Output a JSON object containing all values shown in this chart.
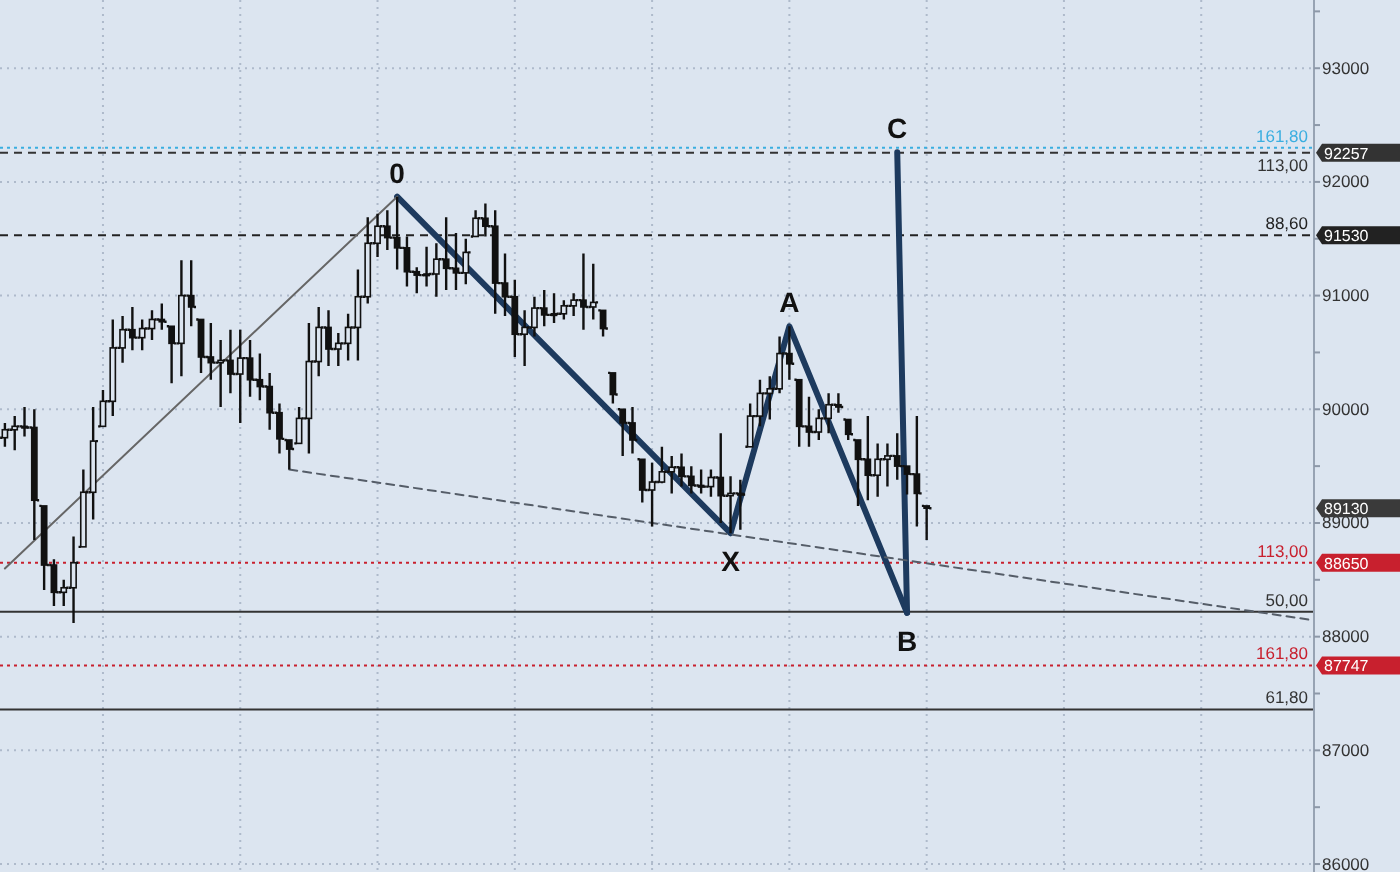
{
  "chart_data": {
    "type": "candlestick",
    "color": "#111111",
    "categories": [
      null,
      null,
      null,
      null,
      null,
      null,
      null,
      null,
      null,
      null,
      null,
      null,
      null,
      null,
      null,
      null,
      null,
      null,
      null,
      null,
      null,
      null,
      null,
      null,
      null,
      null,
      null,
      null,
      null,
      null,
      null,
      null,
      null,
      null,
      null,
      null,
      null,
      null,
      null,
      null,
      null,
      null,
      null,
      null,
      null,
      null,
      null,
      null,
      null,
      null,
      null,
      null,
      null,
      null,
      null,
      null,
      null,
      null,
      null,
      null,
      null,
      null,
      null,
      null,
      null,
      null,
      null,
      null,
      null,
      null,
      null,
      null,
      null,
      null,
      null,
      null,
      null,
      null,
      null,
      null,
      null,
      null,
      null,
      null,
      null,
      null,
      null,
      null,
      null,
      null,
      null,
      null,
      null,
      null,
      null,
      null,
      null,
      null,
      null,
      null,
      null,
      null,
      null,
      null,
      null,
      null,
      null,
      null,
      null,
      null,
      null,
      null,
      null,
      null,
      null,
      null,
      null,
      null,
      null,
      null,
      null,
      null,
      null,
      null,
      null,
      null,
      null,
      null,
      null,
      null,
      null,
      null,
      null,
      null
    ],
    "ohlc": [
      [
        89750,
        89880,
        89670,
        89820
      ],
      [
        89820,
        89940,
        89640,
        89850
      ],
      [
        89850,
        90020,
        89760,
        89840
      ],
      [
        89840,
        90000,
        88850,
        89200
      ],
      [
        89150,
        89150,
        88410,
        88630
      ],
      [
        88630,
        88680,
        88270,
        88390
      ],
      [
        88390,
        88500,
        88270,
        88430
      ],
      [
        88430,
        88880,
        88120,
        88650
      ],
      [
        88790,
        89470,
        88790,
        89270
      ],
      [
        89270,
        90020,
        89030,
        89720
      ],
      [
        89850,
        90170,
        89850,
        90070
      ],
      [
        90070,
        90790,
        89940,
        90540
      ],
      [
        90540,
        90820,
        90410,
        90700
      ],
      [
        90700,
        90900,
        90520,
        90630
      ],
      [
        90630,
        90790,
        90520,
        90710
      ],
      [
        90710,
        90870,
        90610,
        90790
      ],
      [
        90790,
        90930,
        90700,
        90770
      ],
      [
        90730,
        90730,
        90230,
        90580
      ],
      [
        90580,
        91310,
        90290,
        91000
      ],
      [
        91000,
        91310,
        90730,
        90900
      ],
      [
        90790,
        90790,
        90320,
        90460
      ],
      [
        90460,
        90760,
        90260,
        90410
      ],
      [
        90410,
        90610,
        90020,
        90430
      ],
      [
        90430,
        90700,
        90140,
        90310
      ],
      [
        90310,
        90700,
        89880,
        90450
      ],
      [
        90450,
        90610,
        90110,
        90260
      ],
      [
        90260,
        90490,
        90080,
        90200
      ],
      [
        90200,
        90320,
        89820,
        89970
      ],
      [
        89970,
        90050,
        89610,
        89740
      ],
      [
        89730,
        89730,
        89470,
        89650
      ],
      [
        89700,
        90020,
        89700,
        89920
      ],
      [
        89920,
        90760,
        89610,
        90420
      ],
      [
        90420,
        90900,
        90290,
        90720
      ],
      [
        90720,
        90870,
        90380,
        90530
      ],
      [
        90530,
        90670,
        90380,
        90580
      ],
      [
        90580,
        90840,
        90430,
        90720
      ],
      [
        90720,
        91230,
        90430,
        90990
      ],
      [
        90990,
        91690,
        90930,
        91460
      ],
      [
        91460,
        91720,
        91340,
        91610
      ],
      [
        91610,
        91750,
        91400,
        91510
      ],
      [
        91510,
        91870,
        91230,
        91420
      ],
      [
        91420,
        91520,
        91080,
        91210
      ],
      [
        91210,
        91250,
        91020,
        91180
      ],
      [
        91180,
        91430,
        91080,
        91190
      ],
      [
        91190,
        91460,
        90990,
        91320
      ],
      [
        91320,
        91690,
        91050,
        91240
      ],
      [
        91240,
        91550,
        91050,
        91200
      ],
      [
        91200,
        91500,
        91100,
        91380
      ],
      [
        91520,
        91750,
        91520,
        91680
      ],
      [
        91680,
        91810,
        91520,
        91610
      ],
      [
        91610,
        91750,
        90840,
        91110
      ],
      [
        91110,
        91370,
        90820,
        90990
      ],
      [
        90990,
        91140,
        90460,
        90660
      ],
      [
        90660,
        90870,
        90380,
        90720
      ],
      [
        90720,
        90990,
        90640,
        90890
      ],
      [
        90890,
        91050,
        90730,
        90830
      ],
      [
        90830,
        91020,
        90760,
        90840
      ],
      [
        90840,
        90960,
        90790,
        90910
      ],
      [
        90910,
        91020,
        90820,
        90960
      ],
      [
        90960,
        91370,
        90700,
        90900
      ],
      [
        90900,
        91280,
        90790,
        90940
      ],
      [
        90870,
        90870,
        90640,
        90710
      ],
      [
        90320,
        90320,
        90050,
        90130
      ],
      [
        90000,
        90000,
        89590,
        89880
      ],
      [
        89880,
        90020,
        89610,
        89730
      ],
      [
        89560,
        89560,
        89180,
        89290
      ],
      [
        89290,
        89530,
        88970,
        89360
      ],
      [
        89360,
        89670,
        89350,
        89450
      ],
      [
        89450,
        89590,
        89260,
        89490
      ],
      [
        89490,
        89610,
        89320,
        89410
      ],
      [
        89410,
        89500,
        89260,
        89330
      ],
      [
        89330,
        89470,
        89260,
        89320
      ],
      [
        89320,
        89470,
        89230,
        89400
      ],
      [
        89400,
        89790,
        89000,
        89240
      ],
      [
        89240,
        89410,
        88910,
        89260
      ],
      [
        89260,
        89380,
        88940,
        89250
      ],
      [
        89670,
        90050,
        89670,
        89940
      ],
      [
        89940,
        90260,
        89850,
        90140
      ],
      [
        90140,
        90290,
        89910,
        90180
      ],
      [
        90180,
        90640,
        90140,
        90490
      ],
      [
        90490,
        90730,
        90260,
        90400
      ],
      [
        90260,
        90260,
        89670,
        89850
      ],
      [
        89850,
        90110,
        89670,
        89800
      ],
      [
        89800,
        90000,
        89730,
        89920
      ],
      [
        89920,
        90140,
        89790,
        90040
      ],
      [
        90040,
        90140,
        89970,
        90020
      ],
      [
        89910,
        89910,
        89730,
        89780
      ],
      [
        89730,
        89730,
        89150,
        89560
      ],
      [
        89560,
        89940,
        89200,
        89420
      ],
      [
        89420,
        89700,
        89230,
        89560
      ],
      [
        89560,
        89700,
        89320,
        89590
      ],
      [
        89590,
        89790,
        89380,
        89500
      ],
      [
        89500,
        89500,
        89250,
        89430
      ],
      [
        89430,
        89940,
        88970,
        89260
      ],
      [
        89150,
        89150,
        88850,
        89130
      ],
      null,
      null,
      null,
      null,
      null,
      null,
      null,
      null,
      null,
      null,
      null,
      null,
      null,
      null,
      null,
      null,
      null,
      null,
      null,
      null,
      null,
      null,
      null,
      null,
      null,
      null,
      null,
      null,
      null,
      null,
      null,
      null,
      null,
      null,
      null,
      null,
      null,
      null,
      null
    ],
    "series": [
      {
        "type": "line",
        "color": "#1d3a5e",
        "values": [
          null,
          null,
          null,
          null,
          null,
          null,
          null,
          null,
          null,
          null,
          null,
          null,
          null,
          null,
          null,
          null,
          null,
          null,
          null,
          null,
          null,
          null,
          null,
          null,
          null,
          null,
          null,
          null,
          null,
          null,
          null,
          null,
          null,
          null,
          null,
          null,
          null,
          null,
          null,
          null,
          91870,
          null,
          null,
          null,
          null,
          null,
          null,
          null,
          null,
          null,
          null,
          null,
          null,
          null,
          null,
          null,
          null,
          null,
          null,
          null,
          null,
          null,
          null,
          null,
          null,
          null,
          null,
          null,
          null,
          null,
          null,
          null,
          null,
          null,
          88910,
          null,
          null,
          null,
          null,
          null,
          90730,
          null,
          null,
          null,
          null,
          null,
          null,
          null,
          null,
          null,
          null,
          null,
          88210,
          null,
          null,
          null,
          null,
          null,
          null,
          null,
          null,
          null,
          null,
          null,
          null,
          null,
          null,
          null,
          null,
          null,
          null,
          null,
          null,
          null,
          null,
          null,
          null,
          null,
          null,
          null,
          null,
          null,
          null,
          null,
          null,
          null,
          null,
          null,
          null,
          null,
          null,
          null,
          null,
          null
        ]
      },
      {
        "type": "line",
        "color": "#1d3a5e",
        "values": [
          null,
          null,
          null,
          null,
          null,
          null,
          null,
          null,
          null,
          null,
          null,
          null,
          null,
          null,
          null,
          null,
          null,
          null,
          null,
          null,
          null,
          null,
          null,
          null,
          null,
          null,
          null,
          null,
          null,
          null,
          null,
          null,
          null,
          null,
          null,
          null,
          null,
          null,
          null,
          null,
          null,
          null,
          null,
          null,
          null,
          null,
          null,
          null,
          null,
          null,
          null,
          null,
          null,
          null,
          null,
          null,
          null,
          null,
          null,
          null,
          null,
          null,
          null,
          null,
          null,
          null,
          null,
          null,
          null,
          null,
          null,
          null,
          null,
          null,
          null,
          null,
          null,
          null,
          null,
          null,
          null,
          null,
          null,
          null,
          null,
          null,
          null,
          null,
          null,
          null,
          null,
          92260,
          88210,
          null,
          null,
          null,
          null,
          null,
          null,
          null,
          null,
          null,
          null,
          null,
          null,
          null,
          null,
          null,
          null,
          null,
          null,
          null,
          null,
          null,
          null,
          null,
          null,
          null,
          null,
          null,
          null,
          null,
          null,
          null,
          null,
          null,
          null,
          null,
          null,
          null,
          null,
          null,
          null,
          null
        ]
      },
      {
        "type": "line",
        "color": "#666666",
        "values": [
          88600,
          null,
          null,
          null,
          null,
          null,
          null,
          null,
          null,
          null,
          null,
          null,
          null,
          null,
          null,
          null,
          null,
          null,
          null,
          null,
          null,
          null,
          null,
          null,
          null,
          null,
          null,
          null,
          null,
          null,
          null,
          null,
          null,
          null,
          null,
          null,
          null,
          null,
          null,
          null,
          91870,
          null,
          null,
          null,
          null,
          null,
          null,
          null,
          null,
          null,
          null,
          null,
          null,
          null,
          null,
          null,
          null,
          null,
          null,
          null,
          null,
          null,
          null,
          null,
          null,
          null,
          null,
          null,
          null,
          null,
          null,
          null,
          null,
          null,
          null,
          null,
          null,
          null,
          null,
          null,
          null,
          null,
          null,
          null,
          null,
          null,
          null,
          null,
          null,
          null,
          null,
          null,
          null,
          null,
          null,
          null,
          null,
          null,
          null,
          null,
          null,
          null,
          null,
          null,
          null,
          null,
          null,
          null,
          null,
          null,
          null,
          null,
          null,
          null,
          null,
          null,
          null,
          null,
          null,
          null,
          null,
          null,
          null,
          null,
          null,
          null,
          null,
          null,
          null,
          null,
          null,
          null,
          null,
          null
        ]
      },
      {
        "type": "line",
        "color": "#555d68",
        "line_style": "dashed",
        "values": [
          null,
          null,
          null,
          null,
          null,
          null,
          null,
          null,
          null,
          null,
          null,
          null,
          null,
          null,
          null,
          null,
          null,
          null,
          null,
          null,
          null,
          null,
          null,
          null,
          null,
          null,
          null,
          null,
          null,
          89470,
          null,
          null,
          null,
          null,
          null,
          null,
          null,
          null,
          null,
          null,
          null,
          null,
          null,
          null,
          null,
          null,
          null,
          null,
          null,
          null,
          null,
          null,
          null,
          null,
          null,
          null,
          null,
          null,
          null,
          null,
          null,
          null,
          null,
          null,
          null,
          null,
          null,
          null,
          null,
          null,
          null,
          null,
          null,
          null,
          null,
          null,
          null,
          null,
          null,
          null,
          null,
          null,
          null,
          null,
          null,
          null,
          null,
          null,
          null,
          null,
          null,
          null,
          null,
          null,
          null,
          null,
          null,
          null,
          null,
          null,
          null,
          null,
          null,
          null,
          null,
          null,
          null,
          null,
          null,
          null,
          null,
          null,
          null,
          null,
          null,
          null,
          null,
          null,
          null,
          null,
          null,
          null,
          null,
          null,
          null,
          null,
          null,
          null,
          null,
          null,
          null,
          null,
          null,
          88150
        ]
      }
    ],
    "ylim": [
      85930,
      93600
    ],
    "yticks": [
      86000,
      {
        "value": 86500,
        "label": null
      },
      87000,
      {
        "value": 87500,
        "label": null
      },
      88000,
      {
        "value": 88500,
        "label": null
      },
      89000,
      {
        "value": 89500,
        "label": null
      },
      90000,
      {
        "value": 90500,
        "label": null
      },
      91000,
      {
        "value": 91500,
        "label": null
      },
      92000,
      {
        "value": 92500,
        "label": null
      },
      93000,
      {
        "value": 93500,
        "label": null
      }
    ],
    "grid": true,
    "tick_labels": "y",
    "ref_lines": [
      {
        "axis": "y",
        "value": 92300,
        "color": "#3aaee0",
        "line_style": "dotted"
      },
      {
        "axis": "y",
        "value": 92257,
        "label": "92257",
        "color": "#333333",
        "line_style": "dashed"
      },
      {
        "axis": "y",
        "value": 91530,
        "label": "91530",
        "color": "#222222",
        "line_style": "dashed"
      },
      {
        "axis": "y",
        "value": 88650,
        "label": "88650",
        "color": "#c8202e",
        "line_style": "dotted"
      },
      {
        "axis": "y",
        "value": 88220,
        "color": "#333333",
        "line_style": "solid"
      },
      {
        "axis": "y",
        "value": 87747,
        "label": "87747",
        "color": "#c8202e",
        "line_style": "dotted"
      },
      {
        "axis": "y",
        "value": 87360,
        "color": "#333333",
        "line_style": "solid"
      }
    ],
    "annotations": [
      {
        "text": "0",
        "y": 91870
      },
      {
        "text": "X",
        "y": 88910
      },
      {
        "text": "A",
        "y": 90730
      },
      {
        "text": "B",
        "y": 88210
      },
      {
        "text": "C",
        "y": 92260
      },
      {
        "text": "161,80",
        "y": 92300
      },
      {
        "text": "113,00",
        "y": 92257
      },
      {
        "text": "88,60",
        "y": 91530
      },
      {
        "text": "113,00",
        "y": 88650
      },
      {
        "text": "50,00",
        "y": 88220
      },
      {
        "text": "161,80",
        "y": 87747
      },
      {
        "text": "61,80",
        "y": 87360
      },
      "89130"
    ]
  }
}
